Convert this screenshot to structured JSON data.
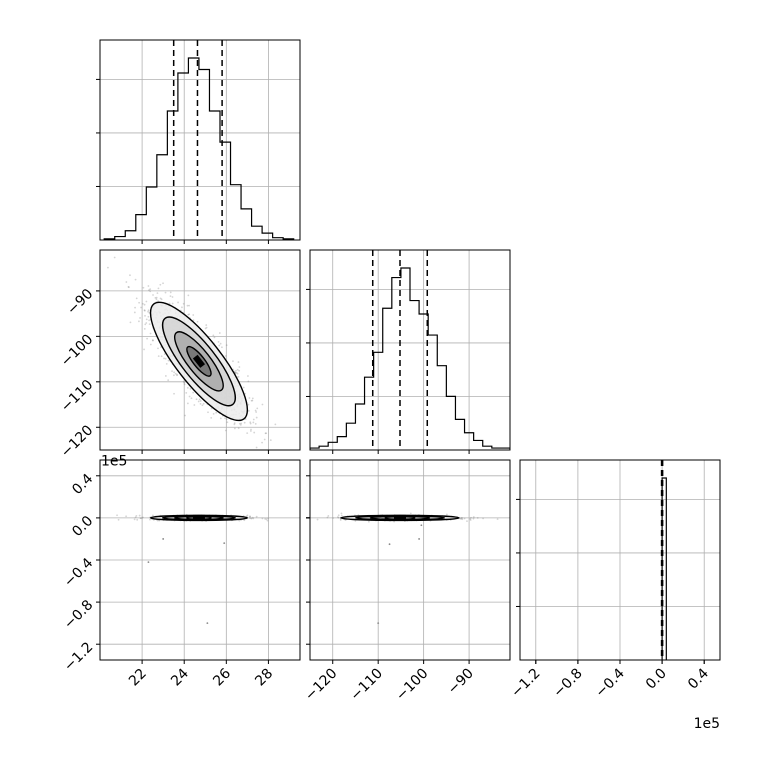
{
  "chart_data": {
    "type": "corner",
    "parameters": [
      {
        "name": "",
        "range": [
          20,
          29.5
        ],
        "ticks": [
          22,
          24,
          26,
          28
        ],
        "tick_labels": [
          "22",
          "24",
          "26",
          "28"
        ]
      },
      {
        "name": "",
        "range": [
          -125,
          -81
        ],
        "ticks": [
          -120,
          -110,
          -100,
          -90
        ],
        "tick_labels": [
          "−120",
          "−110",
          "−100",
          "−90"
        ]
      },
      {
        "name": "",
        "range": [
          -1.35,
          0.55
        ],
        "ticks": [
          -1.2,
          -0.8,
          -0.4,
          0.0,
          0.4
        ],
        "tick_labels": [
          "−1.2",
          "−0.8",
          "−0.4",
          "0.0",
          "0.4"
        ],
        "offset_text": "1e5"
      }
    ],
    "diagonal": [
      {
        "param": 0,
        "type": "histogram-step",
        "bin_edges": [
          20.2,
          20.7,
          21.2,
          21.7,
          22.2,
          22.7,
          23.2,
          23.7,
          24.2,
          24.7,
          25.2,
          25.7,
          26.2,
          26.7,
          27.2,
          27.7,
          28.2,
          28.7,
          29.2
        ],
        "counts": [
          1,
          3,
          8,
          22,
          46,
          74,
          112,
          145,
          158,
          148,
          112,
          85,
          48,
          27,
          12,
          6,
          2,
          1
        ],
        "quantiles": [
          23.5,
          24.63,
          25.8
        ],
        "grid": true
      },
      {
        "param": 1,
        "type": "histogram-step",
        "bin_edges": [
          -125,
          -123,
          -121,
          -119,
          -117,
          -115,
          -113,
          -111,
          -109,
          -107,
          -105,
          -103,
          -101,
          -99,
          -97,
          -95,
          -93,
          -91,
          -89,
          -87,
          -85,
          -83,
          -81
        ],
        "counts": [
          1,
          2,
          4,
          7,
          14,
          24,
          38,
          51,
          74,
          90,
          95,
          78,
          71,
          60,
          44,
          28,
          16,
          9,
          5,
          2,
          1,
          1
        ],
        "quantiles": [
          -111.2,
          -105.2,
          -99.2
        ],
        "grid": true
      },
      {
        "param": 2,
        "type": "histogram-step",
        "bin_edges": [
          0.0,
          0.04
        ],
        "counts": [
          1
        ],
        "quantiles": [
          -0.005,
          0.0,
          0.005
        ],
        "grid": true
      }
    ],
    "contour_panels": [
      {
        "x_param": 0,
        "y_param": 1,
        "center": [
          24.7,
          -105.5
        ],
        "correlation": -0.82,
        "sd": [
          1.15,
          6.5
        ],
        "levels_sigma": [
          0.5,
          1.0,
          1.5,
          2.0
        ],
        "grid": true
      },
      {
        "x_param": 0,
        "y_param": 2,
        "center": [
          24.7,
          0.0
        ],
        "sd": [
          1.15,
          0.012
        ],
        "levels_sigma": [
          0.5,
          1.0,
          1.5,
          2.0
        ],
        "outliers": [
          [
            22.3,
            -0.42
          ],
          [
            25.1,
            -1.0
          ],
          [
            25.9,
            -0.24
          ],
          [
            23.0,
            -0.2
          ]
        ],
        "grid": true
      },
      {
        "x_param": 1,
        "y_param": 2,
        "center": [
          -105.2,
          0.0
        ],
        "sd": [
          6.5,
          0.012
        ],
        "levels_sigma": [
          0.5,
          1.0,
          1.5,
          2.0
        ],
        "outliers": [
          [
            -110.0,
            -1.0
          ],
          [
            -107.5,
            -0.25
          ],
          [
            -101.0,
            -0.2
          ],
          [
            -100.5,
            -0.07
          ]
        ],
        "grid": true
      }
    ],
    "colors": {
      "contour": "#000000",
      "scatter": "#7f7f7f",
      "grid": "#b0b0b0",
      "frame": "#000000"
    }
  }
}
